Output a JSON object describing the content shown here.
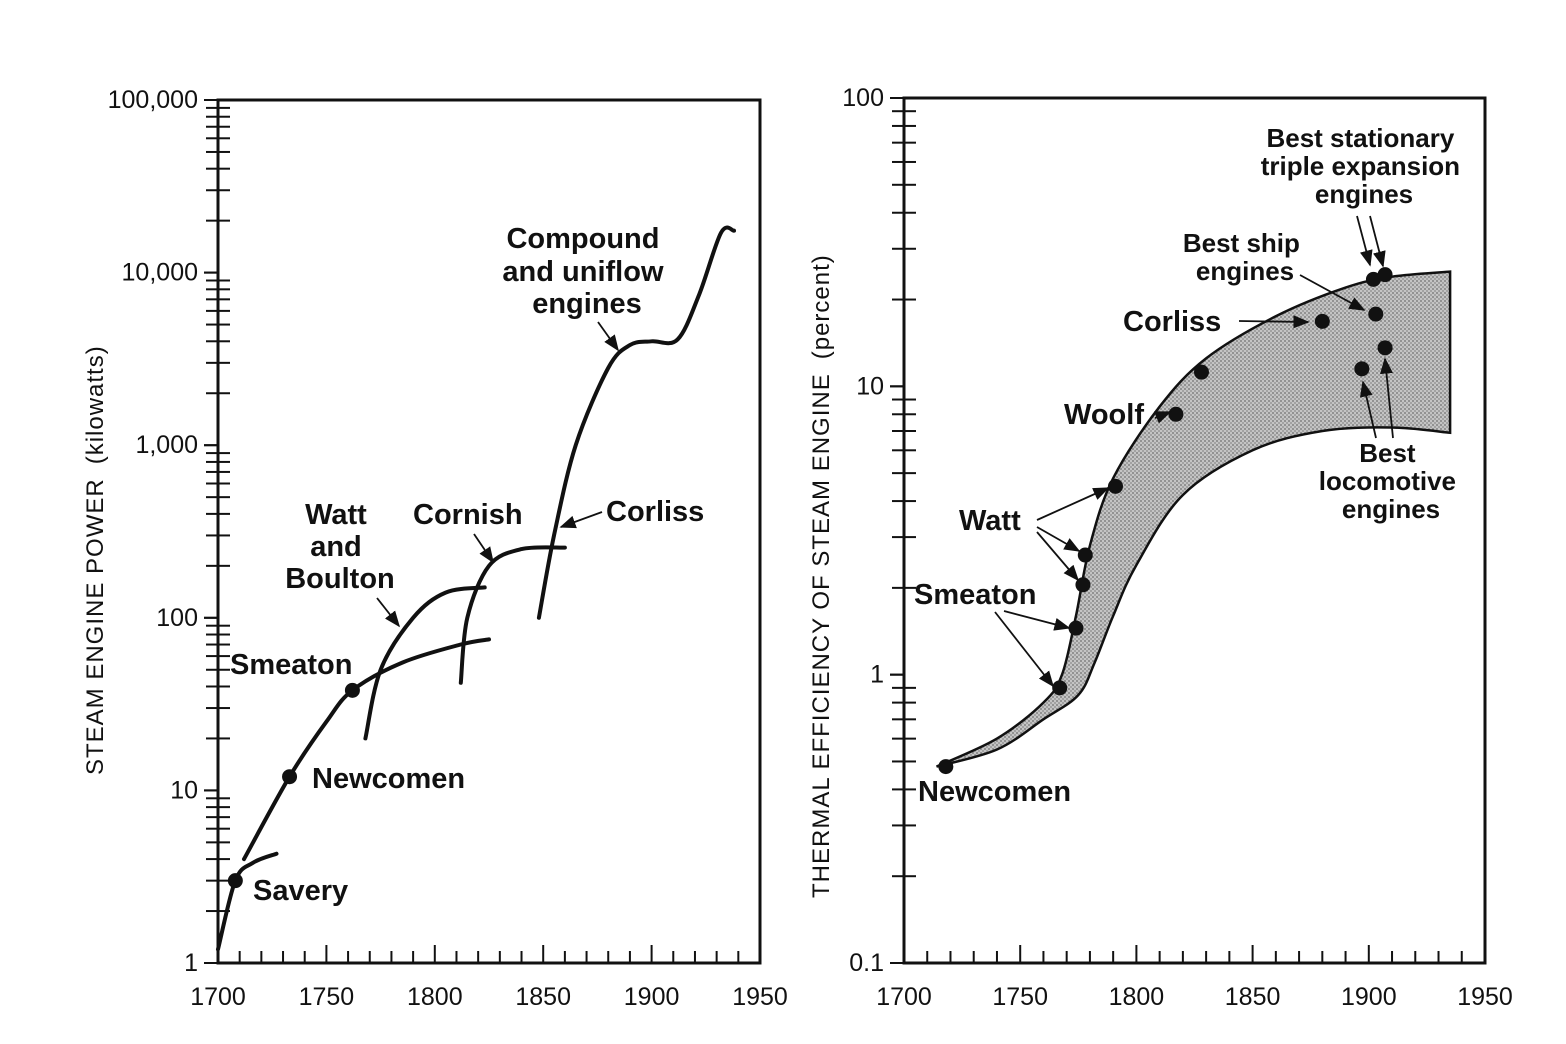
{
  "chart_data": [
    {
      "type": "line",
      "ylabel": "STEAM ENGINE POWER",
      "ylabel_unit": "(kilowatts)",
      "y_scale": "log",
      "xlim": [
        1700,
        1950
      ],
      "ylim": [
        1,
        100000
      ],
      "x_ticks": [
        "1700",
        "1750",
        "1800",
        "1850",
        "1900",
        "1950"
      ],
      "y_ticks": [
        "1",
        "10",
        "100",
        "1,000",
        "10,000",
        "100,000"
      ],
      "series": [
        {
          "name": "Savery",
          "x": [
            1700,
            1708,
            1716,
            1727
          ],
          "y": [
            1.2,
            3,
            3.8,
            4.3
          ]
        },
        {
          "name": "Smeaton",
          "x": [
            1712,
            1733,
            1750,
            1762,
            1785,
            1812,
            1825
          ],
          "y": [
            4,
            12,
            25,
            38,
            55,
            70,
            75
          ]
        },
        {
          "name": "Watt and Boulton",
          "x": [
            1768,
            1775,
            1790,
            1805,
            1823
          ],
          "y": [
            20,
            50,
            100,
            140,
            150
          ]
        },
        {
          "name": "Cornish",
          "x": [
            1812,
            1815,
            1825,
            1840,
            1860
          ],
          "y": [
            42,
            100,
            200,
            250,
            255
          ]
        },
        {
          "name": "Corliss",
          "x": [
            1848,
            1855,
            1865,
            1880,
            1890,
            1900,
            1912,
            1922,
            1932,
            1938
          ],
          "y": [
            100,
            300,
            1000,
            2800,
            3800,
            4000,
            4100,
            7500,
            17000,
            17500
          ]
        }
      ],
      "points": [
        {
          "label": "Savery",
          "x": 1708,
          "y": 3
        },
        {
          "label": "Newcomen",
          "x": 1733,
          "y": 12
        },
        {
          "label": "Smeaton",
          "x": 1762,
          "y": 38
        }
      ],
      "labels": {
        "savery": "Savery",
        "newcomen": "Newcomen",
        "smeaton": "Smeaton",
        "watt": [
          "Watt",
          "and",
          "Boulton"
        ],
        "cornish": "Cornish",
        "corliss": "Corliss",
        "compound": [
          "Compound",
          "and uniflow",
          "engines"
        ]
      }
    },
    {
      "type": "scatter",
      "ylabel": "THERMAL EFFICIENCY OF STEAM ENGINE",
      "ylabel_unit": "(percent)",
      "y_scale": "log",
      "xlim": [
        1700,
        1950
      ],
      "ylim": [
        0.1,
        100
      ],
      "x_ticks": [
        "1700",
        "1750",
        "1800",
        "1850",
        "1900",
        "1950"
      ],
      "y_ticks": [
        "0.1",
        "1",
        "10",
        "100"
      ],
      "band_upper": {
        "x": [
          1714,
          1740,
          1760,
          1768,
          1774,
          1780,
          1790,
          1810,
          1830,
          1860,
          1890,
          1910,
          1935
        ],
        "y": [
          0.48,
          0.6,
          0.8,
          1.0,
          1.6,
          2.8,
          4.8,
          8.5,
          12.5,
          17.5,
          22,
          24,
          25
        ]
      },
      "band_lower": {
        "x": [
          1714,
          1740,
          1760,
          1775,
          1782,
          1790,
          1800,
          1820,
          1850,
          1880,
          1910,
          1935
        ],
        "y": [
          0.48,
          0.55,
          0.7,
          0.85,
          1.1,
          1.6,
          2.4,
          4.2,
          6.0,
          7.0,
          7.2,
          6.9
        ]
      },
      "points": [
        {
          "label": "Newcomen",
          "x": 1718,
          "y": 0.48
        },
        {
          "label": "Smeaton",
          "x": 1767,
          "y": 0.9
        },
        {
          "label": "Smeaton",
          "x": 1774,
          "y": 1.45
        },
        {
          "label": "Watt",
          "x": 1777,
          "y": 2.05
        },
        {
          "label": "Watt",
          "x": 1778,
          "y": 2.6
        },
        {
          "label": "Watt",
          "x": 1791,
          "y": 4.5
        },
        {
          "label": "Woolf",
          "x": 1817,
          "y": 8.0
        },
        {
          "label": "Woolf",
          "x": 1828,
          "y": 11.2
        },
        {
          "label": "Corliss",
          "x": 1880,
          "y": 16.8
        },
        {
          "label": "Best ship engines",
          "x": 1903,
          "y": 17.8
        },
        {
          "label": "Best stationary triple expansion engines",
          "x": 1902,
          "y": 23.5
        },
        {
          "label": "Best stationary triple expansion engines",
          "x": 1907,
          "y": 24.4
        },
        {
          "label": "Best locomotive engines",
          "x": 1897,
          "y": 11.5
        },
        {
          "label": "Best locomotive engines",
          "x": 1907,
          "y": 13.6
        }
      ],
      "labels": {
        "newcomen": "Newcomen",
        "smeaton": "Smeaton",
        "watt": "Watt",
        "woolf": "Woolf",
        "corliss": "Corliss",
        "ship": [
          "Best ship",
          "engines"
        ],
        "stationary": [
          "Best stationary",
          "triple expansion",
          "engines"
        ],
        "locomotive": [
          "Best",
          "locomotive",
          "engines"
        ]
      }
    }
  ]
}
